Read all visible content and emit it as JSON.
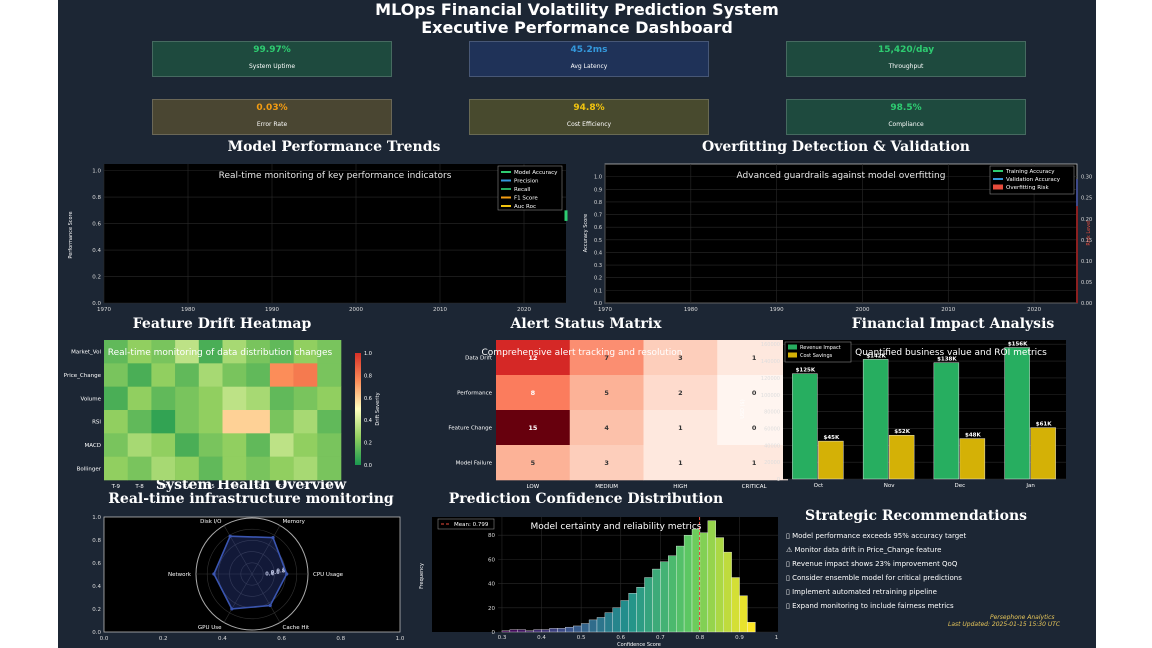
{
  "titles": {
    "line1": "MLOps Financial Volatility Prediction System",
    "line2": "Executive Performance Dashboard"
  },
  "kpis": [
    {
      "value": "99.97%",
      "label": "System Uptime",
      "color": "#2ecc71",
      "bg": "#1e4a3e"
    },
    {
      "value": "45.2ms",
      "label": "Avg Latency",
      "color": "#3498db",
      "bg": "#1f3258"
    },
    {
      "value": "15,420/day",
      "label": "Throughput",
      "color": "#2ecc71",
      "bg": "#1e4a3e"
    },
    {
      "value": "0.03%",
      "label": "Error Rate",
      "color": "#f39c12",
      "bg": "#4a4632"
    },
    {
      "value": "94.8%",
      "label": "Cost Efficiency",
      "color": "#f1c40f",
      "bg": "#484a2e"
    },
    {
      "value": "98.5%",
      "label": "Compliance",
      "color": "#2ecc71",
      "bg": "#1e4a3e"
    }
  ],
  "panels": {
    "trends": {
      "title": "Model Performance Trends",
      "subtitle": "Real-time monitoring of key performance indicators",
      "ylabel": "Performance Score"
    },
    "overfit": {
      "title": "Overfitting Detection & Validation",
      "subtitle": "Advanced guardrails against model overfitting",
      "ylabel": "Accuracy Score",
      "y2label": "Risk Level"
    },
    "drift": {
      "title": "Feature Drift Heatmap",
      "subtitle": "Real-time monitoring of data distribution changes",
      "cbar_label": "Drift Severity"
    },
    "alerts": {
      "title": "Alert Status Matrix",
      "subtitle": "Comprehensive alert tracking and resolution"
    },
    "financial": {
      "title": "Financial Impact Analysis",
      "subtitle": "Quantified business value and ROI metrics",
      "ylabel": "USD ($)"
    },
    "health": {
      "title": "System Health Overview",
      "subtitle": "Real-time infrastructure monitoring"
    },
    "confidence": {
      "title": "Prediction Confidence Distribution",
      "subtitle": "Model certainty and reliability metrics",
      "xlabel": "Confidence Score",
      "ylabel": "Frequency"
    },
    "recs": {
      "title": "Strategic Recommendations"
    }
  },
  "recommendations": [
    "▯ Model performance exceeds 95% accuracy target",
    "⚠ Monitor data drift in Price_Change feature",
    "▯ Revenue impact shows 23% improvement QoQ",
    "▯ Consider ensemble model for critical predictions",
    "▯ Implement automated retraining pipeline",
    "▯ Expand monitoring to include fairness metrics"
  ],
  "footer": {
    "brand": "Persephone Analytics",
    "updated": "Last Updated: 2025-01-15 15:30 UTC"
  },
  "chart_data": [
    {
      "id": "trends",
      "type": "line",
      "xlim": [
        1970,
        2025
      ],
      "ylim": [
        0,
        1.05
      ],
      "xticks": [
        1970,
        1980,
        1990,
        2000,
        2010,
        2020
      ],
      "yticks": [
        0.0,
        0.2,
        0.4,
        0.6,
        0.8,
        1.0
      ],
      "series": [
        {
          "name": "Model Accuracy",
          "color": "#2ecc71"
        },
        {
          "name": "Precision",
          "color": "#3498db"
        },
        {
          "name": "Recall",
          "color": "#27ae60"
        },
        {
          "name": "F1 Score",
          "color": "#f39c12"
        },
        {
          "name": "Auc Roc",
          "color": "#f1c40f"
        }
      ],
      "marker": {
        "x": 2025,
        "y0": 0.62,
        "y1": 0.7
      },
      "legend": "top-right",
      "grid": true
    },
    {
      "id": "overfit",
      "type": "line",
      "xlim": [
        1970,
        2025
      ],
      "ylim": [
        0,
        1.1
      ],
      "xticks": [
        1970,
        1980,
        1990,
        2000,
        2010,
        2020
      ],
      "yticks": [
        0.0,
        0.1,
        0.2,
        0.3,
        0.4,
        0.5,
        0.6,
        0.7,
        0.8,
        0.9,
        1.0
      ],
      "y2lim": [
        0,
        0.33
      ],
      "y2ticks": [
        0.0,
        0.05,
        0.1,
        0.15,
        0.2,
        0.25,
        0.3
      ],
      "series": [
        {
          "name": "Training Accuracy",
          "color": "#2ecc71"
        },
        {
          "name": "Validation Accuracy",
          "color": "#3498db"
        },
        {
          "name": "Overfitting Risk",
          "color": "#e74c3c"
        }
      ],
      "marker": {
        "x": 2025,
        "acc_y0": 0.62,
        "acc_y1": 0.98,
        "risk_y0": 0,
        "risk_y1": 0.23
      },
      "legend": "top-right",
      "grid": true
    },
    {
      "id": "drift",
      "type": "heatmap",
      "rows": [
        "Market_Vol",
        "Price_Change",
        "Volume",
        "RSI",
        "MACD",
        "Bollinger"
      ],
      "cols": [
        "T-9",
        "T-8",
        "T-7",
        "T-6",
        "T-5",
        "T-4",
        "T-3",
        "T-2",
        "T-1",
        "T-0"
      ],
      "values": [
        [
          0.15,
          0.25,
          0.2,
          0.35,
          0.1,
          0.3,
          0.2,
          0.15,
          0.25,
          0.2
        ],
        [
          0.2,
          0.1,
          0.25,
          0.15,
          0.3,
          0.2,
          0.15,
          0.75,
          0.8,
          0.2
        ],
        [
          0.1,
          0.25,
          0.15,
          0.2,
          0.25,
          0.35,
          0.3,
          0.15,
          0.2,
          0.25
        ],
        [
          0.25,
          0.15,
          0.05,
          0.2,
          0.25,
          0.6,
          0.6,
          0.2,
          0.3,
          0.15
        ],
        [
          0.2,
          0.3,
          0.25,
          0.1,
          0.2,
          0.25,
          0.15,
          0.35,
          0.25,
          0.2
        ],
        [
          0.25,
          0.2,
          0.3,
          0.25,
          0.15,
          0.25,
          0.2,
          0.25,
          0.3,
          0.2
        ]
      ],
      "vmin": 0,
      "vmax": 1.0,
      "cbar_ticks": [
        0.0,
        0.2,
        0.4,
        0.6,
        0.8,
        1.0
      ]
    },
    {
      "id": "alerts",
      "type": "heatmap",
      "rows": [
        "Data Drift",
        "Performance",
        "Feature Change",
        "Model Failure"
      ],
      "cols": [
        "LOW",
        "MEDIUM",
        "HIGH",
        "CRITICAL"
      ],
      "values": [
        [
          12,
          7,
          3,
          1
        ],
        [
          8,
          5,
          2,
          0
        ],
        [
          15,
          4,
          1,
          0
        ],
        [
          5,
          3,
          1,
          1
        ]
      ],
      "vmin": 0,
      "vmax": 15
    },
    {
      "id": "financial",
      "type": "bar",
      "categories": [
        "Oct",
        "Nov",
        "Dec",
        "Jan"
      ],
      "series": [
        {
          "name": "Revenue Impact",
          "values": [
            125000,
            142000,
            138000,
            156000
          ],
          "labels": [
            "$125K",
            "$142K",
            "$138K",
            "$156K"
          ],
          "color": "#27ae60"
        },
        {
          "name": "Cost Savings",
          "values": [
            45000,
            52000,
            48000,
            61000
          ],
          "labels": [
            "$45K",
            "$52K",
            "$48K",
            "$61K"
          ],
          "color": "#d4b106"
        }
      ],
      "ylim": [
        0,
        165000
      ],
      "yticks": [
        0,
        20000,
        40000,
        60000,
        80000,
        100000,
        120000,
        140000,
        160000
      ],
      "legend": "top-left"
    },
    {
      "id": "health",
      "type": "radar",
      "axes": [
        "Memory",
        "CPU Usage",
        "Cache Hit",
        "GPU Use",
        "Network",
        "Disk I/O"
      ],
      "values": [
        0.75,
        0.62,
        0.65,
        0.72,
        0.68,
        0.78
      ],
      "rlim": [
        0,
        1.0
      ],
      "rticks": [
        0.2,
        0.4,
        0.6,
        0.8,
        1.0
      ],
      "outer_xlim": [
        0,
        1.0
      ],
      "outer_ylim": [
        0,
        1.0
      ],
      "outer_ticks": [
        0.0,
        0.2,
        0.4,
        0.6,
        0.8,
        1.0
      ]
    },
    {
      "id": "confidence",
      "type": "histogram",
      "bin_start": 0.3,
      "bin_width": 0.02,
      "counts": [
        1,
        2,
        2,
        1,
        2,
        2,
        3,
        3,
        4,
        5,
        7,
        10,
        12,
        16,
        20,
        26,
        32,
        37,
        45,
        52,
        58,
        63,
        71,
        80,
        85,
        82,
        92,
        78,
        66,
        45,
        30,
        8
      ],
      "xlim": [
        0.29,
        1.03
      ],
      "xticks": [
        0.3,
        0.4,
        0.5,
        0.6,
        0.7,
        0.8,
        0.9,
        1.0
      ],
      "ylim": [
        0,
        95
      ],
      "yticks": [
        0,
        20,
        40,
        60,
        80
      ],
      "mean": 0.799,
      "mean_label": "Mean: 0.799"
    }
  ]
}
